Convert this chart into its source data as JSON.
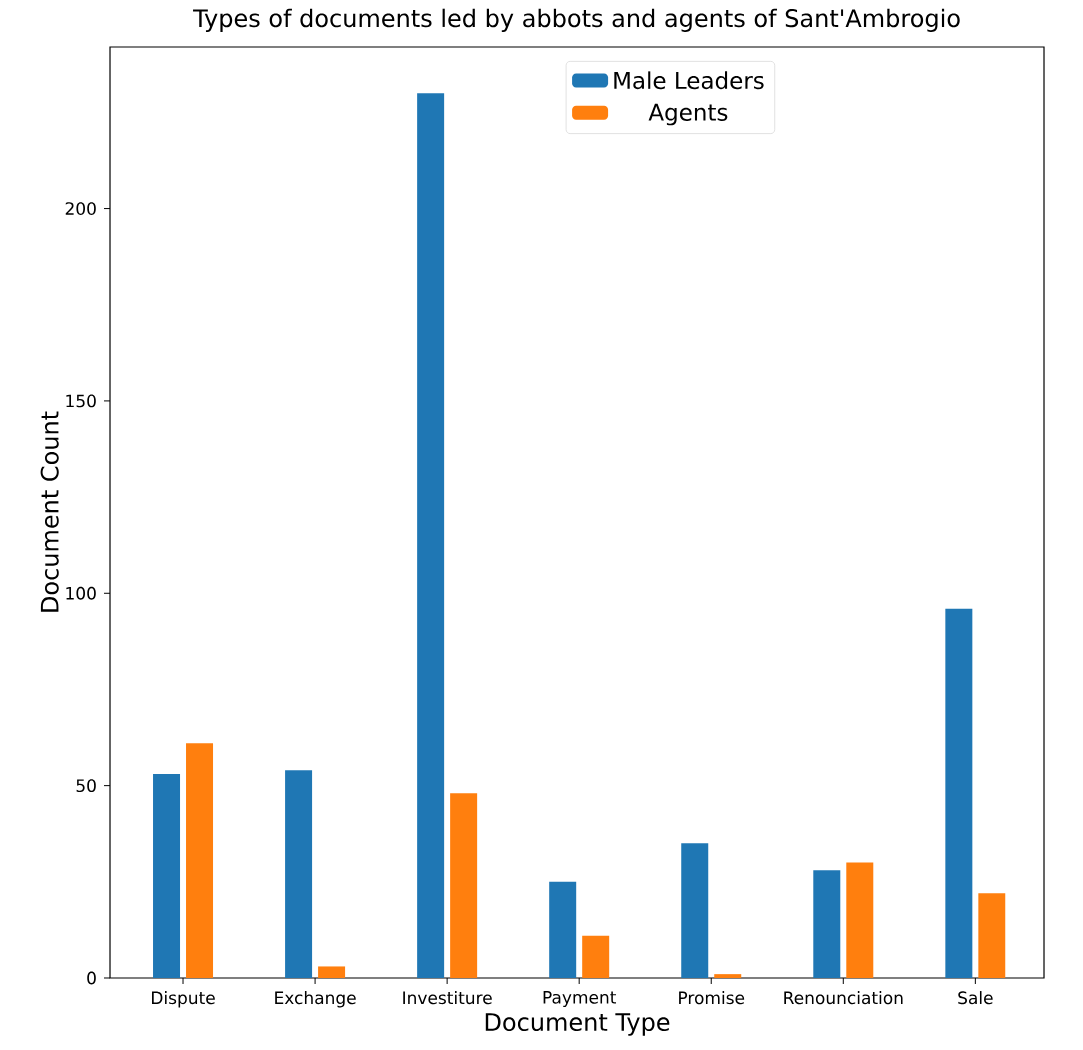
{
  "chart_data": {
    "type": "bar",
    "title": "Types of documents led by abbots and agents of Sant'Ambrogio",
    "xlabel": "Document  Type",
    "ylabel": "Document  Count",
    "categories": [
      "Dispute",
      "Exchange",
      "Investiture",
      "Payment",
      "Promise",
      "Renounciation",
      "Sale"
    ],
    "series": [
      {
        "name": "Male Leaders",
        "color": "#1f77b4",
        "values": [
          53,
          54,
          230,
          25,
          35,
          28,
          96
        ]
      },
      {
        "name": "Agents",
        "color": "#ff7f0e",
        "values": [
          61,
          3,
          48,
          11,
          1,
          30,
          22
        ]
      }
    ],
    "ylim": [
      0,
      242
    ],
    "yticks": [
      0,
      50,
      100,
      150,
      200
    ],
    "legend": "top",
    "grid": false
  }
}
